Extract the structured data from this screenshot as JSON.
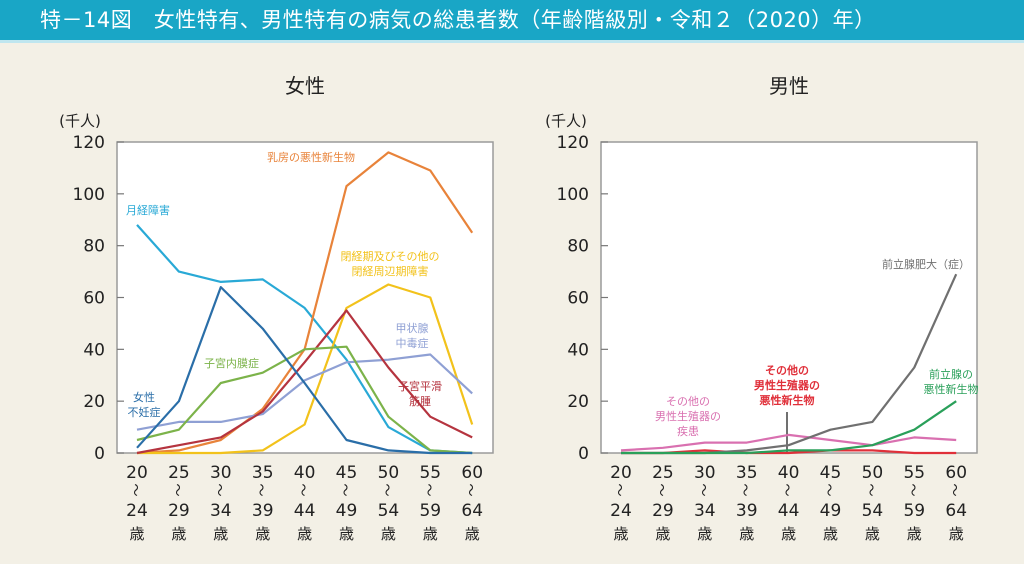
{
  "header": {
    "title": "特－14図　女性特有、男性特有の病気の総患者数（年齢階級別・令和２（2020）年）"
  },
  "chart_data": [
    {
      "type": "line",
      "title": "女性",
      "ylabel": "(千人)",
      "xlabel": "",
      "ylim": [
        0,
        120
      ],
      "yticks": [
        "0",
        "20",
        "40",
        "60",
        "80",
        "100",
        "120"
      ],
      "categories": [
        {
          "from": "20",
          "sep": "〜",
          "to": "24",
          "unit": "歳"
        },
        {
          "from": "25",
          "sep": "〜",
          "to": "29",
          "unit": "歳"
        },
        {
          "from": "30",
          "sep": "〜",
          "to": "34",
          "unit": "歳"
        },
        {
          "from": "35",
          "sep": "〜",
          "to": "39",
          "unit": "歳"
        },
        {
          "from": "40",
          "sep": "〜",
          "to": "44",
          "unit": "歳"
        },
        {
          "from": "45",
          "sep": "〜",
          "to": "49",
          "unit": "歳"
        },
        {
          "from": "50",
          "sep": "〜",
          "to": "54",
          "unit": "歳"
        },
        {
          "from": "55",
          "sep": "〜",
          "to": "59",
          "unit": "歳"
        },
        {
          "from": "60",
          "sep": "〜",
          "to": "64",
          "unit": "歳"
        }
      ],
      "grid": false,
      "series": [
        {
          "name": "月経障害",
          "label_lines": [
            "月経障害"
          ],
          "color": "#29a9d6",
          "values": [
            88,
            70,
            66,
            67,
            56,
            36,
            10,
            1,
            0
          ]
        },
        {
          "name": "乳房の悪性新生物",
          "label_lines": [
            "乳房の悪性新生物"
          ],
          "color": "#e8833a",
          "values": [
            0,
            1,
            5,
            17,
            40,
            103,
            116,
            109,
            85
          ]
        },
        {
          "name": "閉経期及びその他の閉経周辺期障害",
          "label_lines": [
            "閉経期及びその他の",
            "閉経周辺期障害"
          ],
          "color": "#f2c21b",
          "values": [
            0,
            0,
            0,
            1,
            11,
            56,
            65,
            60,
            11
          ]
        },
        {
          "name": "甲状腺中毒症",
          "label_lines": [
            "甲状腺",
            "中毒症"
          ],
          "color": "#8fa0d4",
          "values": [
            9,
            12,
            12,
            15,
            28,
            35,
            36,
            38,
            23
          ]
        },
        {
          "name": "子宮平滑筋腫",
          "label_lines": [
            "子宮平滑",
            "筋腫"
          ],
          "color": "#b5343f",
          "values": [
            0,
            3,
            6,
            16,
            35,
            55,
            33,
            14,
            6
          ]
        },
        {
          "name": "子宮内膜症",
          "label_lines": [
            "子宮内膜症"
          ],
          "color": "#7cb34a",
          "values": [
            5,
            9,
            27,
            31,
            40,
            41,
            14,
            1,
            0
          ]
        },
        {
          "name": "女性不妊症",
          "label_lines": [
            "女性",
            "不妊症"
          ],
          "color": "#2a6ea8",
          "values": [
            2,
            20,
            64,
            48,
            27,
            5,
            1,
            0,
            0
          ]
        }
      ]
    },
    {
      "type": "line",
      "title": "男性",
      "ylabel": "(千人)",
      "xlabel": "",
      "ylim": [
        0,
        120
      ],
      "yticks": [
        "0",
        "20",
        "40",
        "60",
        "80",
        "100",
        "120"
      ],
      "categories": [
        {
          "from": "20",
          "sep": "〜",
          "to": "24",
          "unit": "歳"
        },
        {
          "from": "25",
          "sep": "〜",
          "to": "29",
          "unit": "歳"
        },
        {
          "from": "30",
          "sep": "〜",
          "to": "34",
          "unit": "歳"
        },
        {
          "from": "35",
          "sep": "〜",
          "to": "39",
          "unit": "歳"
        },
        {
          "from": "40",
          "sep": "〜",
          "to": "44",
          "unit": "歳"
        },
        {
          "from": "45",
          "sep": "〜",
          "to": "49",
          "unit": "歳"
        },
        {
          "from": "50",
          "sep": "〜",
          "to": "54",
          "unit": "歳"
        },
        {
          "from": "55",
          "sep": "〜",
          "to": "59",
          "unit": "歳"
        },
        {
          "from": "60",
          "sep": "〜",
          "to": "64",
          "unit": "歳"
        }
      ],
      "grid": false,
      "series": [
        {
          "name": "その他の男性生殖器の疾患",
          "label_lines": [
            "その他の",
            "男性生殖器の",
            "疾患"
          ],
          "color": "#d970b0",
          "values": [
            1,
            2,
            4,
            4,
            7,
            5,
            3,
            6,
            5
          ]
        },
        {
          "name": "その他の男性生殖器の悪性新生物",
          "label_lines": [
            "その他の",
            "男性生殖器の",
            "悪性新生物"
          ],
          "color": "#e0303a",
          "values": [
            0,
            0,
            1,
            0,
            0,
            1,
            1,
            0,
            0
          ]
        },
        {
          "name": "前立腺肥大（症）",
          "label_lines": [
            "前立腺肥大（症）"
          ],
          "color": "#707070",
          "values": [
            0,
            0,
            0,
            1,
            3,
            9,
            12,
            33,
            69
          ]
        },
        {
          "name": "前立腺の悪性新生物",
          "label_lines": [
            "前立腺の",
            "悪性新生物"
          ],
          "color": "#2aa05a",
          "values": [
            0,
            0,
            0,
            0,
            1,
            1,
            3,
            9,
            20
          ]
        }
      ]
    }
  ]
}
